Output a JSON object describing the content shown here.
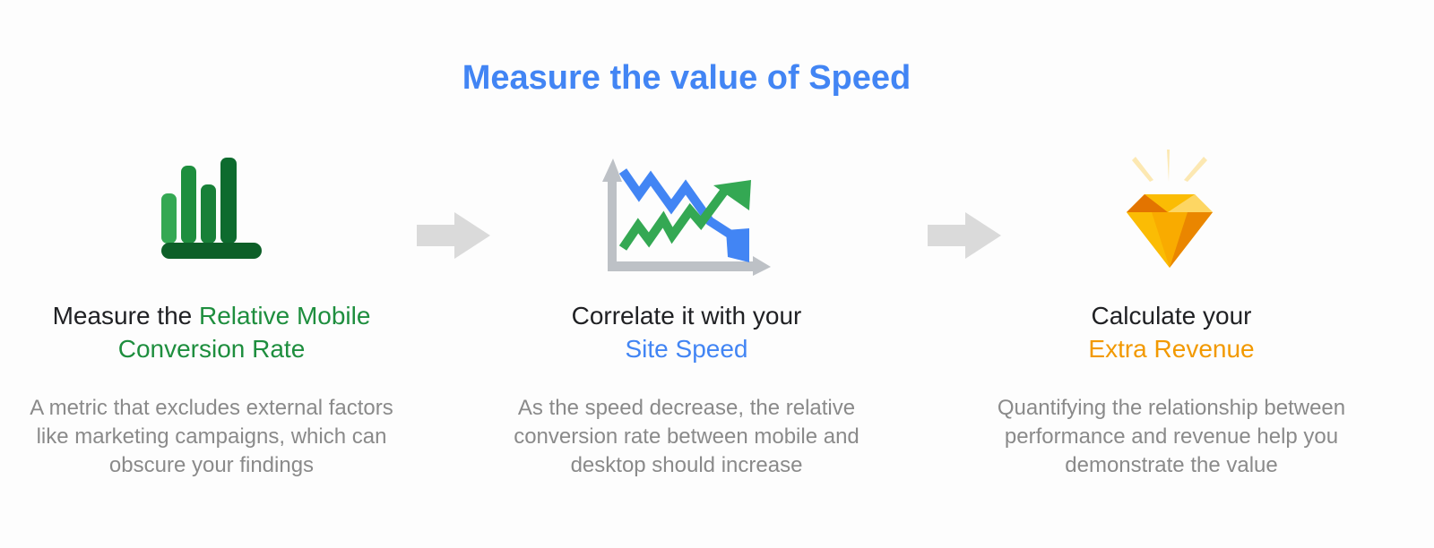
{
  "title": "Measure the value of Speed",
  "steps": [
    {
      "icon": "bar-chart-icon",
      "heading": "Measure the ",
      "highlight": "Relative Mobile Conversion Rate",
      "highlight_color": "#1e8e3e",
      "description": "A metric that excludes external factors like marketing campaigns, which can obscure your findings"
    },
    {
      "icon": "trend-chart-icon",
      "heading": "Correlate it with your",
      "highlight": "Site Speed",
      "highlight_color": "#4285f4",
      "description": "As the speed decrease, the relative conversion rate between mobile and desktop should increase"
    },
    {
      "icon": "diamond-icon",
      "heading": "Calculate your",
      "highlight": "Extra Revenue",
      "highlight_color": "#f29900",
      "description": "Quantifying the relationship between performance and revenue help you demonstrate the value"
    }
  ],
  "colors": {
    "title": "#4285f4",
    "arrow": "#dadada"
  }
}
